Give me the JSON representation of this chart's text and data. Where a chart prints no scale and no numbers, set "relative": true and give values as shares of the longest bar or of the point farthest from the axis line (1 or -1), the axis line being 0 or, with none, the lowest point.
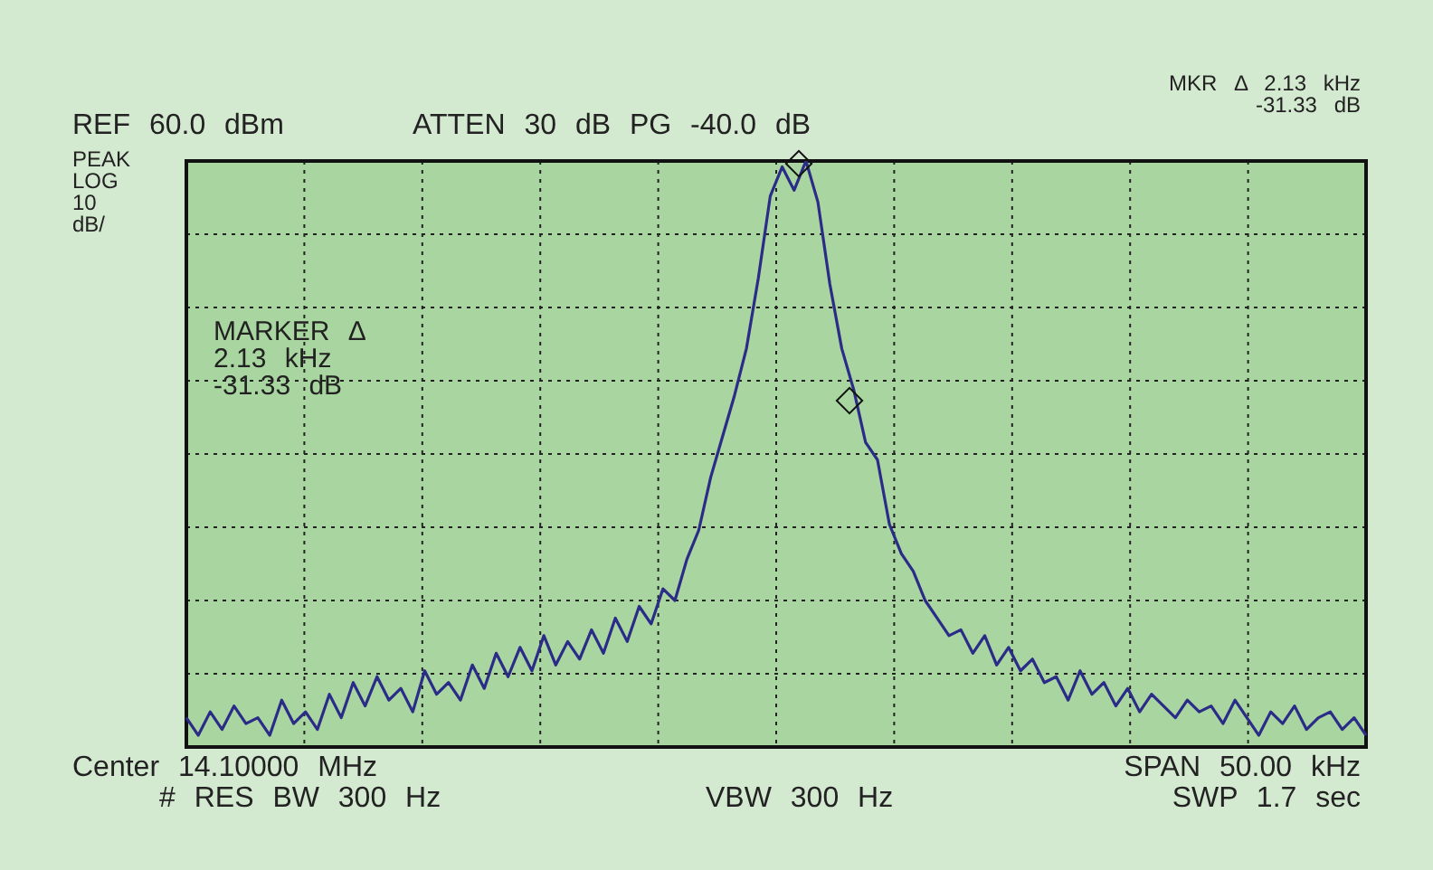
{
  "chart_data": {
    "type": "line",
    "relative": true,
    "grid": true,
    "legend": false,
    "categories": [
      null,
      null,
      null,
      null,
      null,
      null,
      null,
      null,
      null,
      null,
      null,
      null,
      null,
      null,
      null,
      null,
      null,
      null,
      null,
      null,
      null,
      null,
      null,
      null,
      null,
      null,
      null,
      null,
      null,
      null,
      null,
      null,
      null,
      null,
      null,
      null,
      null,
      null,
      null,
      null,
      null,
      null,
      null,
      null,
      null,
      null,
      null,
      null,
      null,
      null,
      null,
      null,
      null,
      null,
      null,
      null,
      null,
      null,
      null,
      null,
      null,
      null,
      null,
      null,
      null,
      null,
      null,
      null,
      null,
      null,
      null,
      null,
      null,
      null,
      null,
      null,
      null,
      null,
      null,
      null,
      null,
      null,
      null,
      null,
      null,
      null,
      null,
      null,
      null,
      null,
      null,
      null,
      null,
      null,
      null,
      null,
      null,
      null,
      null,
      null
    ],
    "annotations": [
      "REF 60.0 dBm",
      "ATTEN 30 dB PG -40.0 dB",
      "MKR Δ 2.13 kHz\n-31.33 dB",
      "PEAK\nLOG\n10\ndB/",
      "MARKER Δ\n2.13 kHz\n-31.33 dB",
      "Center 14.10000 MHz",
      "# RES BW 300 Hz",
      "VBW 300 Hz",
      "SPAN 50.00 kHz",
      "SWP 1.7 sec"
    ],
    "series": [
      {
        "color": "#2b2b88",
        "marker": "none",
        "values": [
          0.05,
          0.02,
          0.06,
          0.03,
          0.07,
          0.04,
          0.05,
          0.02,
          0.08,
          0.04,
          0.06,
          0.03,
          0.09,
          0.05,
          0.11,
          0.07,
          0.12,
          0.08,
          0.1,
          0.06,
          0.13,
          0.09,
          0.11,
          0.08,
          0.14,
          0.1,
          0.16,
          0.12,
          0.17,
          0.13,
          0.19,
          0.14,
          0.18,
          0.15,
          0.2,
          0.16,
          0.22,
          0.18,
          0.24,
          0.21,
          0.27,
          0.25,
          0.32,
          0.37,
          0.46,
          0.53,
          0.6,
          0.68,
          0.8,
          0.94,
          0.99,
          0.95,
          1.0,
          0.93,
          0.79,
          0.68,
          0.61,
          0.52,
          0.49,
          0.38,
          0.33,
          0.3,
          0.25,
          0.22,
          0.19,
          0.2,
          0.16,
          0.19,
          0.14,
          0.17,
          0.13,
          0.15,
          0.11,
          0.12,
          0.08,
          0.13,
          0.09,
          0.11,
          0.07,
          0.1,
          0.06,
          0.09,
          0.07,
          0.05,
          0.08,
          0.06,
          0.07,
          0.04,
          0.08,
          0.05,
          0.02,
          0.06,
          0.04,
          0.07,
          0.03,
          0.05,
          0.06,
          0.03,
          0.05,
          0.02
        ]
      }
    ]
  }
}
